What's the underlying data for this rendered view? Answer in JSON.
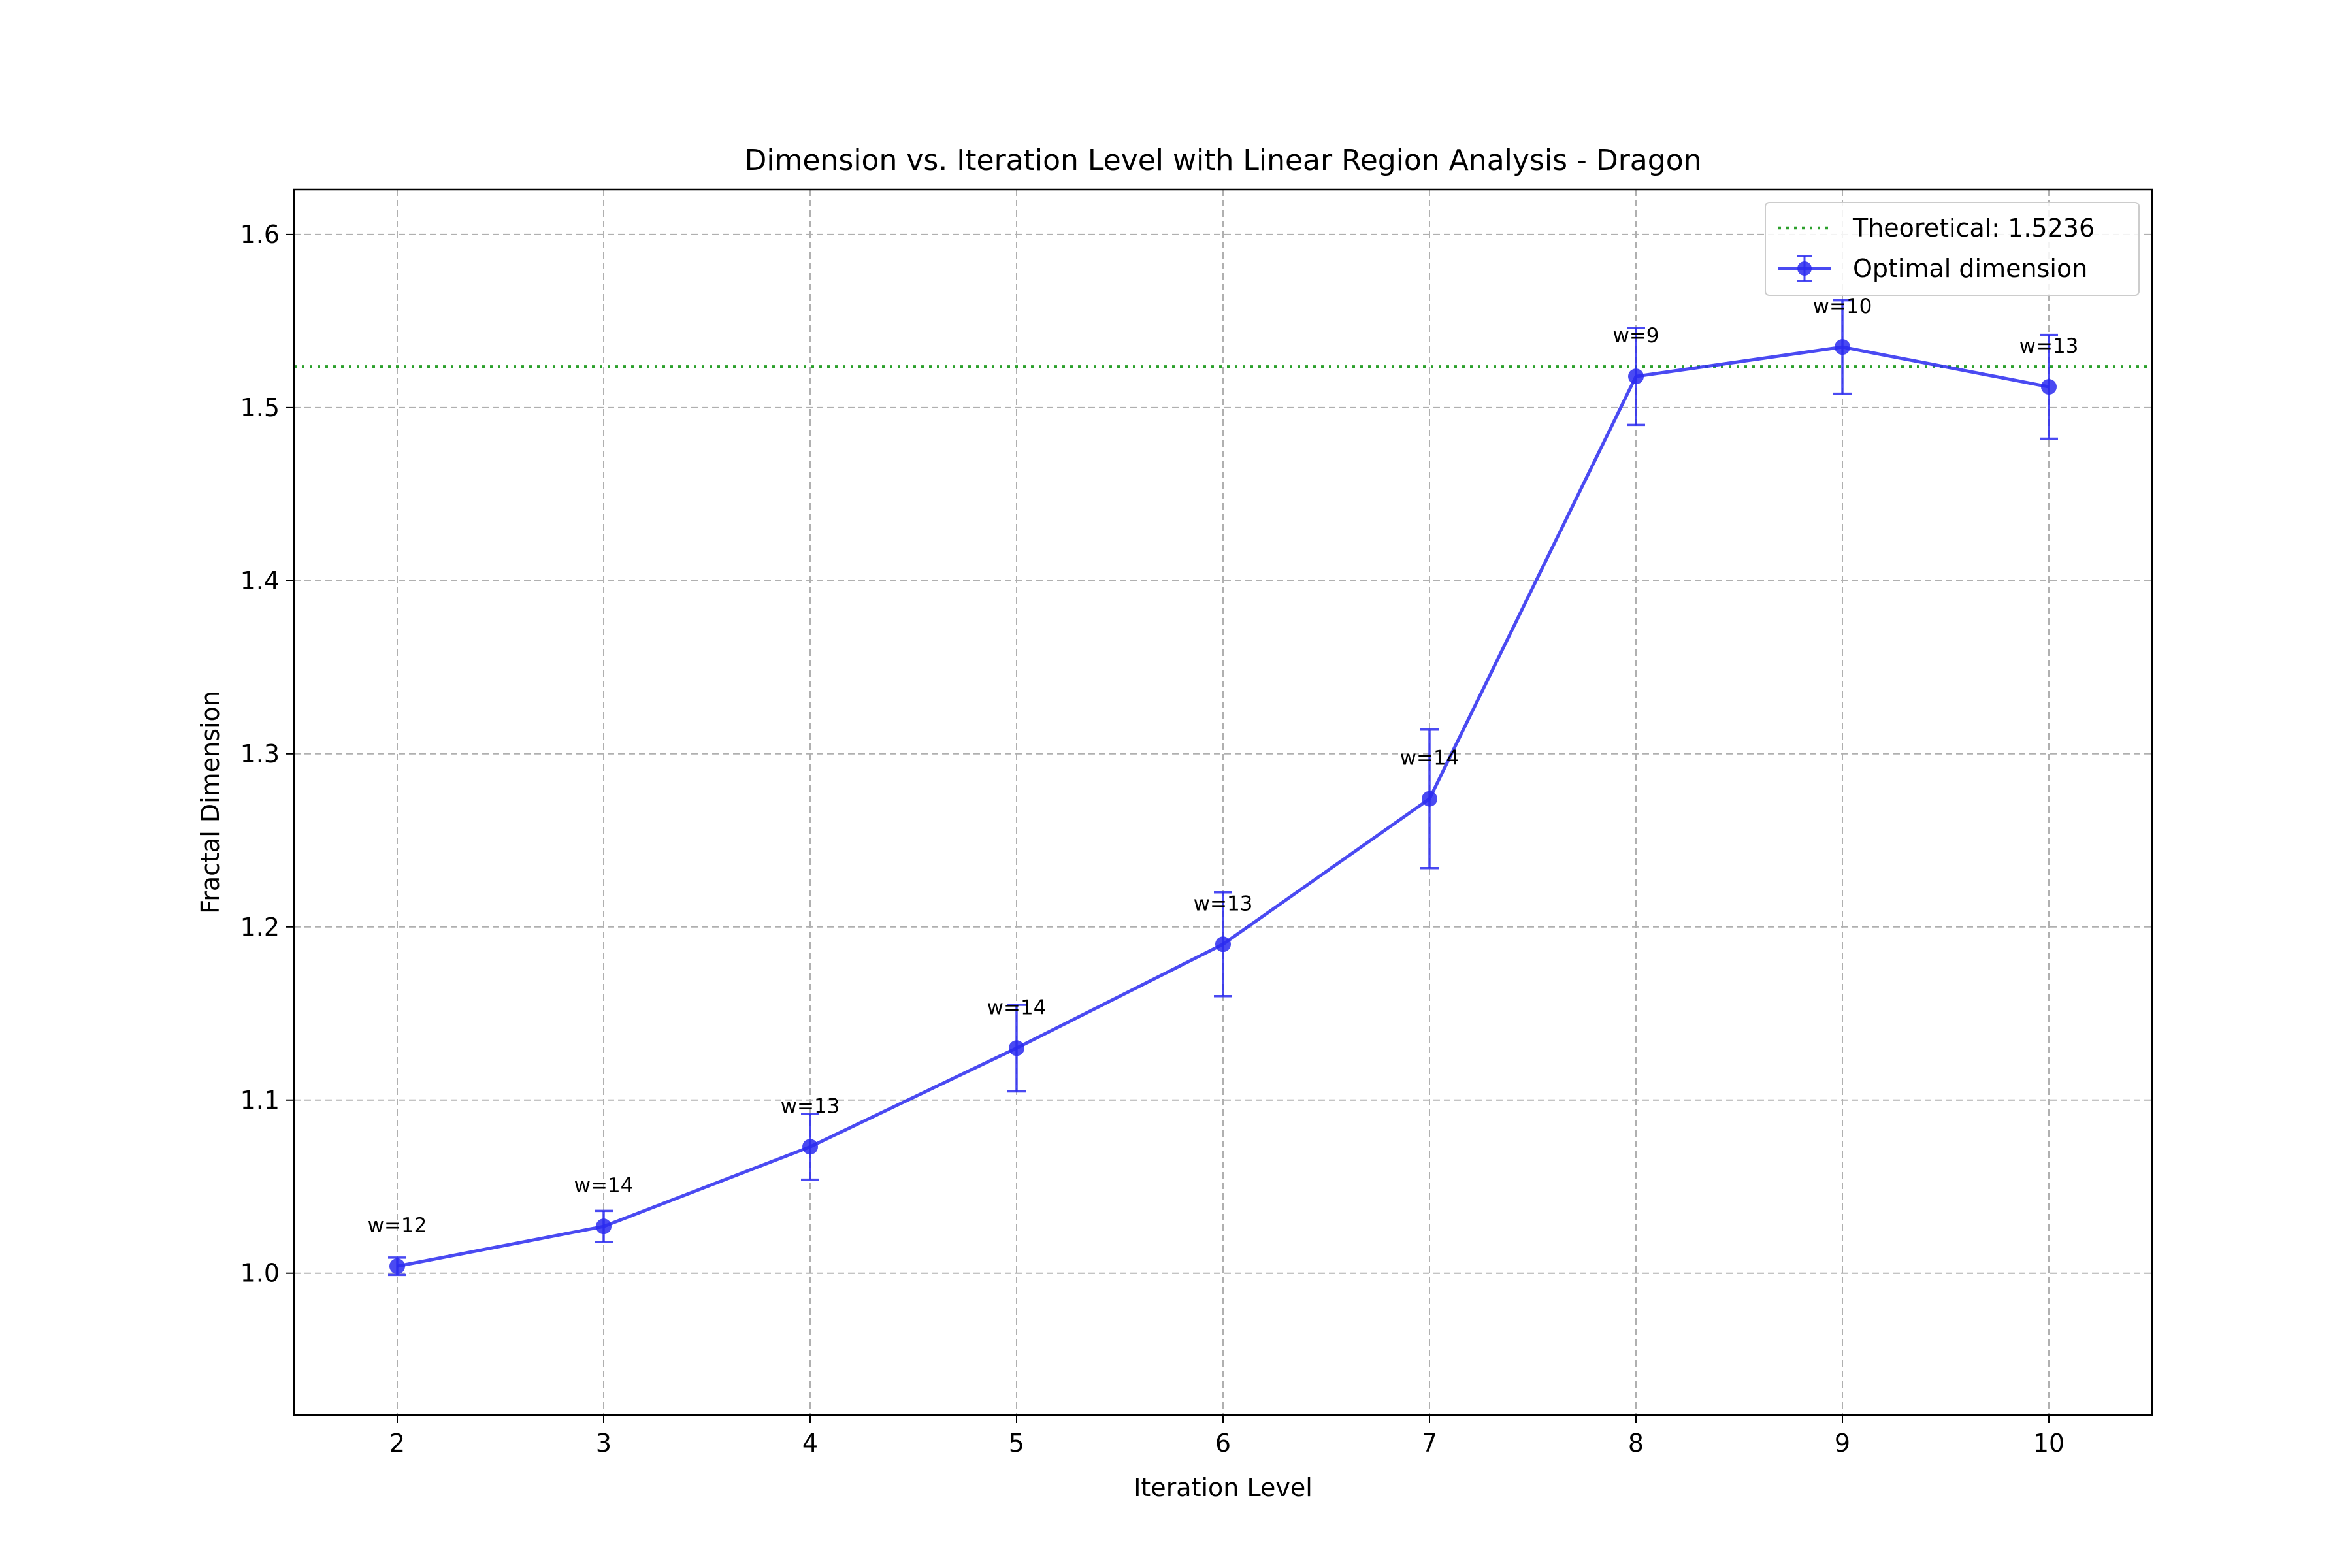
{
  "chart_data": {
    "type": "line",
    "title": "Dimension vs. Iteration Level with Linear Region Analysis - Dragon",
    "xlabel": "Iteration Level",
    "ylabel": "Fractal Dimension",
    "xlim": [
      1.5,
      10.5
    ],
    "ylim": [
      0.918,
      1.626
    ],
    "xticks": [
      2,
      3,
      4,
      5,
      6,
      7,
      8,
      9,
      10
    ],
    "yticks": [
      1.0,
      1.1,
      1.2,
      1.3,
      1.4,
      1.5,
      1.6
    ],
    "grid": true,
    "legend_position": "top-right",
    "series": [
      {
        "name": "Optimal dimension",
        "color": "#2a2af0",
        "x": [
          2,
          3,
          4,
          5,
          6,
          7,
          8,
          9,
          10
        ],
        "y": [
          1.004,
          1.027,
          1.073,
          1.13,
          1.19,
          1.274,
          1.518,
          1.535,
          1.512
        ],
        "error": [
          0.005,
          0.009,
          0.019,
          0.025,
          0.03,
          0.04,
          0.028,
          0.027,
          0.03
        ],
        "labels": [
          "w=12",
          "w=14",
          "w=13",
          "w=14",
          "w=13",
          "w=14",
          "w=9",
          "w=10",
          "w=13"
        ]
      }
    ],
    "reference_lines": [
      {
        "name": "Theoretical: 1.5236",
        "y": 1.5236,
        "color": "#2ca02c",
        "style": "dotted"
      }
    ]
  }
}
